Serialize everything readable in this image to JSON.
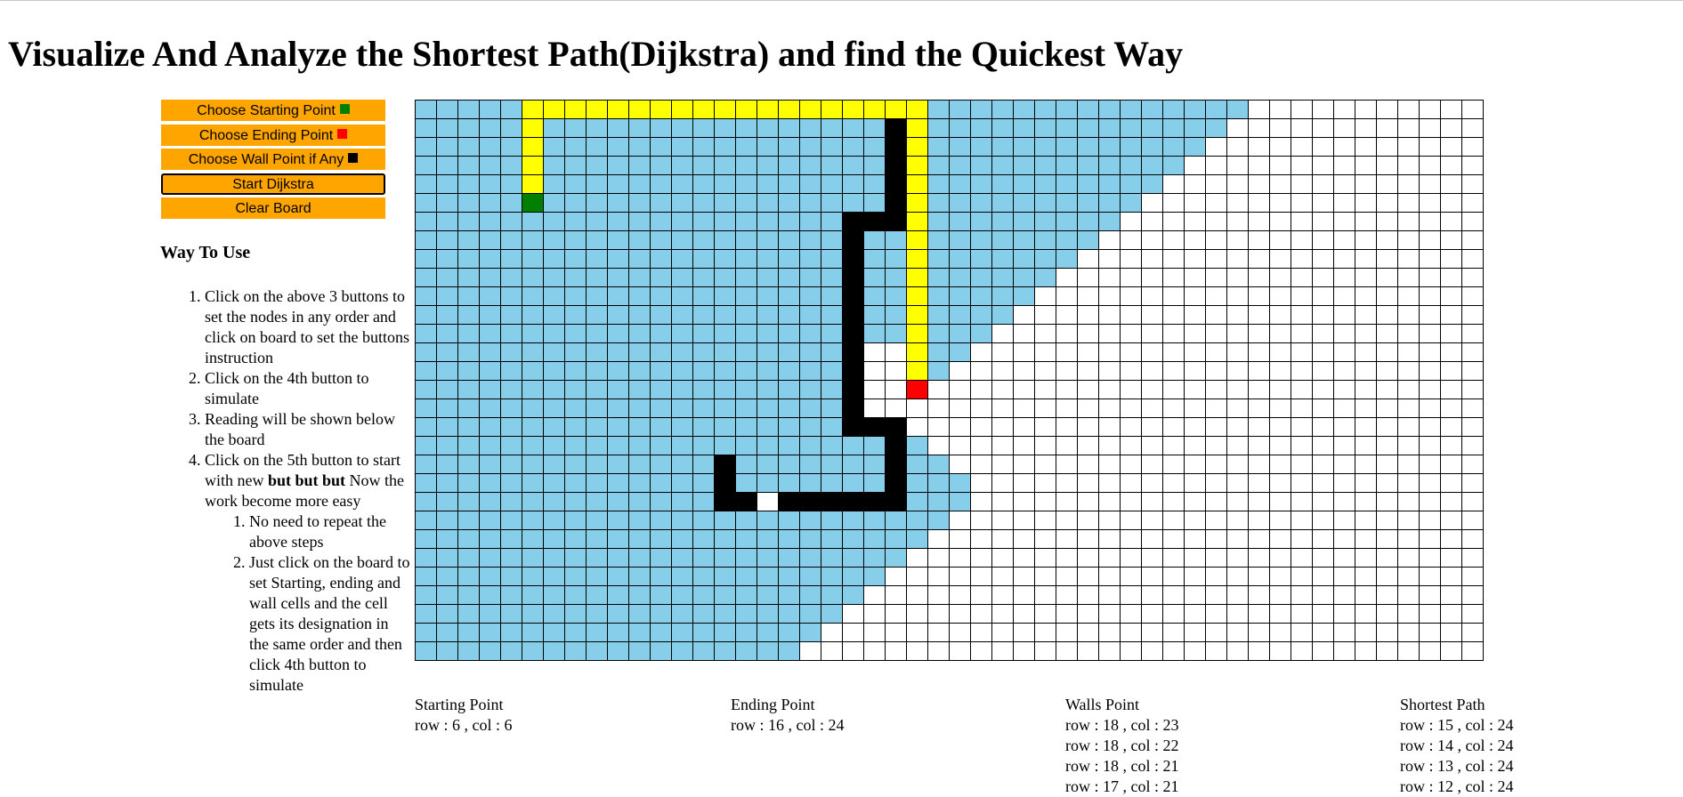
{
  "page": {
    "title": "Visualize And Analyze the Shortest Path(Dijkstra) and find the Quickest Way"
  },
  "buttons": {
    "start_point": {
      "label": "Choose Starting Point",
      "color": "#008000"
    },
    "end_point": {
      "label": "Choose Ending Point",
      "color": "#ff0000"
    },
    "wall_point": {
      "label": "Choose Wall Point if Any",
      "color": "#000000"
    },
    "run": {
      "label": "Start Dijkstra"
    },
    "clear": {
      "label": "Clear Board"
    },
    "accent": "#ffa500"
  },
  "howto": {
    "title": "Way To Use",
    "step1": "Click on the above 3 buttons to set the nodes in any order and click on board to set the buttons instruction",
    "step2": "Click on the 4th button to simulate",
    "step3": "Reading will be shown below the board",
    "step4_prefix": "Click on the 5th button to start with new ",
    "step4_bold": "but but but",
    "step4_suffix": " Now the work become more easy",
    "sub1": "No need to repeat the above steps",
    "sub2": "Just click on the board to set Starting, ending and wall cells and the cell gets its designation in the same order and then click 4th button to simulate"
  },
  "board": {
    "rows": 30,
    "cols": 50,
    "colors": {
      "visited": "#87ceeb",
      "path": "#ffff00",
      "wall": "#000000",
      "start": "#008000",
      "end": "#ff0000",
      "empty": "#ffffff"
    },
    "start": [
      5,
      5
    ],
    "end": [
      15,
      23
    ],
    "path": [
      [
        5,
        5
      ],
      [
        4,
        5
      ],
      [
        3,
        5
      ],
      [
        2,
        5
      ],
      [
        1,
        5
      ],
      [
        0,
        5
      ],
      [
        0,
        6
      ],
      [
        0,
        7
      ],
      [
        0,
        8
      ],
      [
        0,
        9
      ],
      [
        0,
        10
      ],
      [
        0,
        11
      ],
      [
        0,
        12
      ],
      [
        0,
        13
      ],
      [
        0,
        14
      ],
      [
        0,
        15
      ],
      [
        0,
        16
      ],
      [
        0,
        17
      ],
      [
        0,
        18
      ],
      [
        0,
        19
      ],
      [
        0,
        20
      ],
      [
        0,
        21
      ],
      [
        0,
        22
      ],
      [
        0,
        23
      ],
      [
        1,
        23
      ],
      [
        2,
        23
      ],
      [
        3,
        23
      ],
      [
        4,
        23
      ],
      [
        5,
        23
      ],
      [
        6,
        23
      ],
      [
        7,
        23
      ],
      [
        8,
        23
      ],
      [
        9,
        23
      ],
      [
        10,
        23
      ],
      [
        11,
        23
      ],
      [
        12,
        23
      ],
      [
        13,
        23
      ],
      [
        14,
        23
      ]
    ],
    "walls": [
      [
        1,
        22
      ],
      [
        2,
        22
      ],
      [
        3,
        22
      ],
      [
        4,
        22
      ],
      [
        5,
        22
      ],
      [
        6,
        22
      ],
      [
        6,
        21
      ],
      [
        6,
        20
      ],
      [
        7,
        20
      ],
      [
        8,
        20
      ],
      [
        9,
        20
      ],
      [
        10,
        20
      ],
      [
        11,
        20
      ],
      [
        12,
        20
      ],
      [
        13,
        20
      ],
      [
        14,
        20
      ],
      [
        15,
        20
      ],
      [
        16,
        20
      ],
      [
        17,
        20
      ],
      [
        17,
        21
      ],
      [
        17,
        22
      ],
      [
        18,
        22
      ],
      [
        19,
        22
      ],
      [
        20,
        22
      ],
      [
        21,
        22
      ],
      [
        21,
        21
      ],
      [
        21,
        20
      ],
      [
        21,
        19
      ],
      [
        21,
        18
      ],
      [
        21,
        17
      ],
      [
        19,
        14
      ],
      [
        20,
        14
      ],
      [
        21,
        14
      ],
      [
        21,
        15
      ]
    ],
    "visited_limits": [
      38,
      37,
      36,
      35,
      34,
      33,
      32,
      31,
      30,
      29,
      28,
      27,
      26,
      25,
      24,
      23,
      22,
      22,
      23,
      24,
      25,
      25,
      24,
      23,
      22,
      21,
      20,
      19,
      18,
      17
    ]
  },
  "readings": {
    "start": {
      "heading": "Starting Point",
      "lines": [
        "row : 6 , col : 6"
      ]
    },
    "end": {
      "heading": "Ending Point",
      "lines": [
        "row : 16 , col : 24"
      ]
    },
    "walls": {
      "heading": "Walls Point",
      "lines": [
        "row : 18 , col : 23",
        "row : 18 , col : 22",
        "row : 18 , col : 21",
        "row : 17 , col : 21"
      ]
    },
    "path": {
      "heading": "Shortest Path",
      "lines": [
        "row : 15 , col : 24",
        "row : 14 , col : 24",
        "row : 13 , col : 24",
        "row : 12 , col : 24"
      ]
    }
  }
}
